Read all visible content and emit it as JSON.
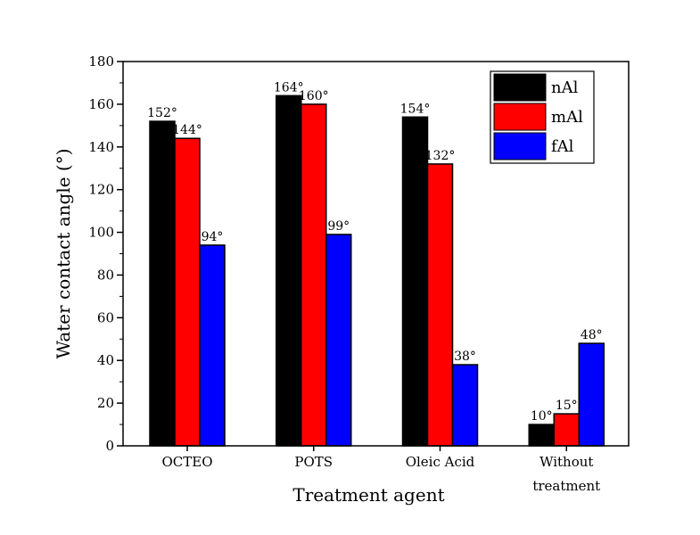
{
  "chart_data": {
    "type": "bar",
    "categories": [
      "OCTEO",
      "POTS",
      "Oleic Acid",
      "Without\ntreatment"
    ],
    "series": [
      {
        "name": "nAl",
        "color": "#000000",
        "values": [
          152,
          164,
          154,
          10
        ],
        "labels": [
          "152°",
          "164°",
          "154°",
          "10°"
        ]
      },
      {
        "name": "mAl",
        "color": "#ff0000",
        "values": [
          144,
          160,
          132,
          15
        ],
        "labels": [
          "144°",
          "160°",
          "132°",
          "15°"
        ]
      },
      {
        "name": "fAl",
        "color": "#0000ff",
        "values": [
          94,
          99,
          38,
          48
        ],
        "labels": [
          "94°",
          "99°",
          "38°",
          "48°"
        ]
      }
    ],
    "xlabel": "Treatment agent",
    "ylabel": "Water contact angle (°)",
    "ylim": [
      0,
      180
    ],
    "yticks": [
      0,
      20,
      40,
      60,
      80,
      100,
      120,
      140,
      160,
      180
    ],
    "grid": false,
    "legend_position": "top-right"
  }
}
